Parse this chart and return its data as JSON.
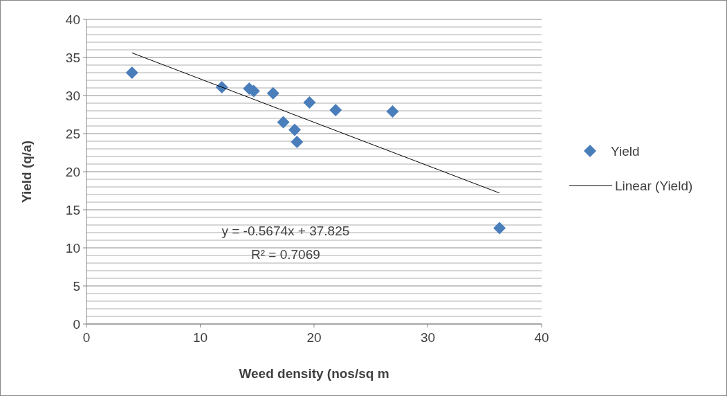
{
  "chart_data": {
    "type": "scatter",
    "xlabel": "Weed density (nos/sq m",
    "ylabel": "Yield (q/a)",
    "xlim": [
      0,
      40
    ],
    "xticks": [
      0,
      10,
      20,
      30,
      40
    ],
    "ylim": [
      0,
      40
    ],
    "yticks": [
      0,
      {
        "value": 1,
        "label": null
      },
      {
        "value": 2,
        "label": null
      },
      {
        "value": 3,
        "label": null
      },
      {
        "value": 4,
        "label": null
      },
      5,
      {
        "value": 6,
        "label": null
      },
      {
        "value": 7,
        "label": null
      },
      {
        "value": 8,
        "label": null
      },
      {
        "value": 9,
        "label": null
      },
      10,
      {
        "value": 11,
        "label": null
      },
      {
        "value": 12,
        "label": null
      },
      {
        "value": 13,
        "label": null
      },
      {
        "value": 14,
        "label": null
      },
      15,
      {
        "value": 16,
        "label": null
      },
      {
        "value": 17,
        "label": null
      },
      {
        "value": 18,
        "label": null
      },
      {
        "value": 19,
        "label": null
      },
      20,
      {
        "value": 21,
        "label": null
      },
      {
        "value": 22,
        "label": null
      },
      {
        "value": 23,
        "label": null
      },
      {
        "value": 24,
        "label": null
      },
      25,
      {
        "value": 26,
        "label": null
      },
      {
        "value": 27,
        "label": null
      },
      {
        "value": 28,
        "label": null
      },
      {
        "value": 29,
        "label": null
      },
      30,
      {
        "value": 31,
        "label": null
      },
      {
        "value": 32,
        "label": null
      },
      {
        "value": 33,
        "label": null
      },
      {
        "value": 34,
        "label": null
      },
      35,
      {
        "value": 36,
        "label": null
      },
      {
        "value": 37,
        "label": null
      },
      {
        "value": 38,
        "label": null
      },
      {
        "value": 39,
        "label": null
      },
      40
    ],
    "grid": "y",
    "legend": "right",
    "series": [
      {
        "name": "Yield",
        "marker": "diamond",
        "color": "#4a7ebb",
        "x": [
          4,
          11.9,
          14.3,
          14.7,
          16.4,
          19.6,
          21.9,
          26.9,
          17.3,
          18.3,
          18.5,
          36.3
        ],
        "values": [
          33,
          31.1,
          30.9,
          30.6,
          30.3,
          29.1,
          28.1,
          27.9,
          26.5,
          25.5,
          23.9,
          12.6
        ]
      },
      {
        "name": "Linear (Yield)",
        "type": "line",
        "marker": "none",
        "color": "#000000",
        "x": [
          4,
          36.3
        ],
        "values": [
          35.6,
          17.2
        ]
      }
    ],
    "annotations": [
      "y = -0.5674x + 37.825",
      "R² = 0.7069"
    ]
  }
}
